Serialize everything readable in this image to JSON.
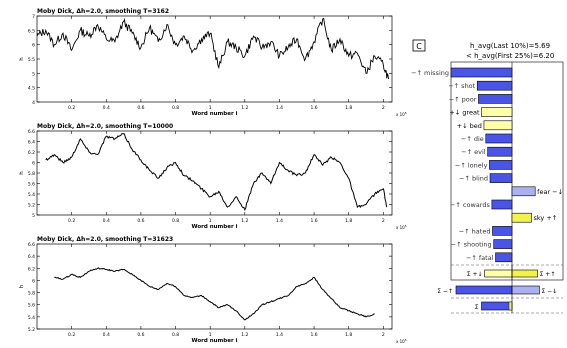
{
  "charts": [
    {
      "title": "Moby Dick, Δh=2.0, smoothing T=3162",
      "xlabel": "Word number i",
      "ylabel": "h_avg",
      "yticks": [
        "4",
        "4.5",
        "5",
        "5.5",
        "6",
        "6.5",
        "7"
      ],
      "xticks": [
        "0.2",
        "0.4",
        "0.6",
        "0.8",
        "1",
        "1.2",
        "1.4",
        "1.6",
        "1.8",
        "2"
      ],
      "xscale": "x 10^5"
    },
    {
      "title": "Moby Dick, Δh=2.0, smoothing T=10000",
      "xlabel": "Word number i",
      "ylabel": "h_avg",
      "yticks": [
        "5",
        "5.2",
        "5.4",
        "5.6",
        "5.8",
        "6",
        "6.2",
        "6.4",
        "6.6"
      ],
      "xticks": [
        "0.2",
        "0.4",
        "0.6",
        "0.8",
        "1",
        "1.2",
        "1.4",
        "1.6",
        "1.8",
        "2"
      ],
      "xscale": "x 10^5"
    },
    {
      "title": "Moby Dick, Δh=2.0, smoothing T=31623",
      "xlabel": "Word number i",
      "ylabel": "h_avg",
      "yticks": [
        "5.2",
        "5.4",
        "5.6",
        "5.8",
        "6",
        "6.2",
        "6.4",
        "6.6"
      ],
      "xticks": [
        "0.2",
        "0.4",
        "0.6",
        "0.8",
        "1",
        "1.2",
        "1.4",
        "1.6",
        "1.8",
        "2"
      ],
      "xscale": "x 10^5"
    }
  ],
  "shift": {
    "panel_label": "C",
    "header_line1": "h_avg(Last 10%)=5.69",
    "header_line2": "< h_avg(First 25%)=6.20",
    "summary_labels": [
      "Σ +↓",
      "Σ +↑",
      "Σ −↑",
      "Σ −↓",
      "Σ"
    ]
  },
  "chart_data": [
    {
      "type": "line",
      "title": "Moby Dick, Δh=2.0, smoothing T=3162",
      "xlabel": "Word number i",
      "ylabel": "h_avg",
      "xlim": [
        0,
        2.05
      ],
      "ylim": [
        4,
        7
      ],
      "x_multiplier": "x 10^5",
      "x": [
        0.0,
        0.05,
        0.1,
        0.15,
        0.2,
        0.25,
        0.3,
        0.35,
        0.4,
        0.45,
        0.5,
        0.55,
        0.6,
        0.65,
        0.7,
        0.75,
        0.8,
        0.85,
        0.9,
        0.95,
        1.0,
        1.05,
        1.1,
        1.15,
        1.2,
        1.25,
        1.3,
        1.35,
        1.4,
        1.45,
        1.5,
        1.55,
        1.6,
        1.65,
        1.7,
        1.75,
        1.8,
        1.85,
        1.9,
        1.95,
        2.0,
        2.03
      ],
      "y": [
        6.3,
        6.5,
        6.0,
        6.4,
        5.8,
        6.5,
        6.3,
        6.7,
        6.2,
        6.1,
        6.8,
        6.4,
        5.9,
        6.6,
        6.1,
        6.7,
        6.0,
        6.3,
        5.8,
        6.2,
        6.4,
        5.2,
        6.1,
        5.9,
        5.6,
        6.3,
        5.9,
        6.1,
        5.6,
        5.9,
        6.2,
        5.5,
        6.1,
        6.9,
        5.8,
        6.2,
        5.6,
        5.7,
        5.0,
        5.6,
        5.3,
        4.8
      ]
    },
    {
      "type": "line",
      "title": "Moby Dick, Δh=2.0, smoothing T=10000",
      "xlabel": "Word number i",
      "ylabel": "h_avg",
      "xlim": [
        0,
        2.05
      ],
      "ylim": [
        5,
        6.6
      ],
      "x_multiplier": "x 10^5",
      "x": [
        0.05,
        0.1,
        0.15,
        0.2,
        0.25,
        0.3,
        0.35,
        0.4,
        0.45,
        0.5,
        0.55,
        0.6,
        0.65,
        0.7,
        0.75,
        0.8,
        0.85,
        0.9,
        0.95,
        1.0,
        1.05,
        1.1,
        1.15,
        1.2,
        1.25,
        1.3,
        1.35,
        1.4,
        1.45,
        1.5,
        1.55,
        1.6,
        1.65,
        1.7,
        1.75,
        1.8,
        1.85,
        1.9,
        1.95,
        2.0,
        2.02
      ],
      "y": [
        6.05,
        6.15,
        6.0,
        6.1,
        6.45,
        6.2,
        6.15,
        6.5,
        6.45,
        6.55,
        6.25,
        6.05,
        5.85,
        5.7,
        5.9,
        6.0,
        5.75,
        5.65,
        5.5,
        5.35,
        5.45,
        5.15,
        5.35,
        5.1,
        5.6,
        5.8,
        5.6,
        6.0,
        5.85,
        5.75,
        5.8,
        6.15,
        5.95,
        6.1,
        6.0,
        5.7,
        5.15,
        5.2,
        5.4,
        5.5,
        5.15
      ]
    },
    {
      "type": "line",
      "title": "Moby Dick, Δh=2.0, smoothing T=31623",
      "xlabel": "Word number i",
      "ylabel": "h_avg",
      "xlim": [
        0,
        2.05
      ],
      "ylim": [
        5.2,
        6.6
      ],
      "x_multiplier": "x 10^5",
      "x": [
        0.1,
        0.15,
        0.2,
        0.25,
        0.3,
        0.35,
        0.4,
        0.45,
        0.5,
        0.55,
        0.6,
        0.65,
        0.7,
        0.75,
        0.8,
        0.85,
        0.9,
        0.95,
        1.0,
        1.05,
        1.1,
        1.15,
        1.2,
        1.25,
        1.3,
        1.35,
        1.4,
        1.45,
        1.5,
        1.55,
        1.6,
        1.65,
        1.7,
        1.75,
        1.8,
        1.85,
        1.9,
        1.95
      ],
      "y": [
        6.05,
        6.02,
        6.1,
        6.05,
        6.15,
        6.2,
        6.18,
        6.15,
        6.18,
        6.1,
        6.0,
        5.9,
        5.85,
        5.95,
        5.9,
        5.75,
        5.72,
        5.75,
        5.65,
        5.55,
        5.6,
        5.5,
        5.35,
        5.45,
        5.6,
        5.65,
        5.7,
        5.75,
        5.9,
        5.95,
        6.05,
        5.85,
        5.7,
        5.55,
        5.5,
        5.45,
        5.4,
        5.45
      ]
    },
    {
      "type": "bar",
      "orientation": "horizontal",
      "title": "",
      "categories": [
        "missing",
        "shot",
        "poor",
        "great",
        "bed",
        "die",
        "evil",
        "lonely",
        "blind",
        "fear",
        "cowards",
        "sky",
        "hated",
        "shooting",
        "fatal"
      ],
      "labels": [
        "−↑ missing",
        "−↑ shot",
        "−↑ poor",
        "+↓ great",
        "+↓ bed",
        "−↑ die",
        "−↑ evil",
        "−↑ lonely",
        "−↑ blind",
        "fear −↓",
        "−↑ cowards",
        "sky +↑",
        "−↑ hated",
        "−↑ shooting",
        "−↑ fatal"
      ],
      "values": [
        -1.0,
        -0.57,
        -0.55,
        -0.5,
        -0.46,
        -0.43,
        -0.4,
        -0.37,
        -0.36,
        0.38,
        -0.33,
        0.32,
        -0.32,
        -0.3,
        -0.27
      ],
      "colors": [
        "#4a55e6",
        "#4a55e6",
        "#4a55e6",
        "#ffffaa",
        "#ffffaa",
        "#4a55e6",
        "#4a55e6",
        "#4a55e6",
        "#4a55e6",
        "#aab0f0",
        "#4a55e6",
        "#f2f24a",
        "#4a55e6",
        "#4a55e6",
        "#4a55e6"
      ],
      "summary": {
        "pos_down": -0.45,
        "pos_up": 0.42,
        "neg_up": -3.4,
        "neg_down": 0.45,
        "total": -0.5
      }
    }
  ]
}
